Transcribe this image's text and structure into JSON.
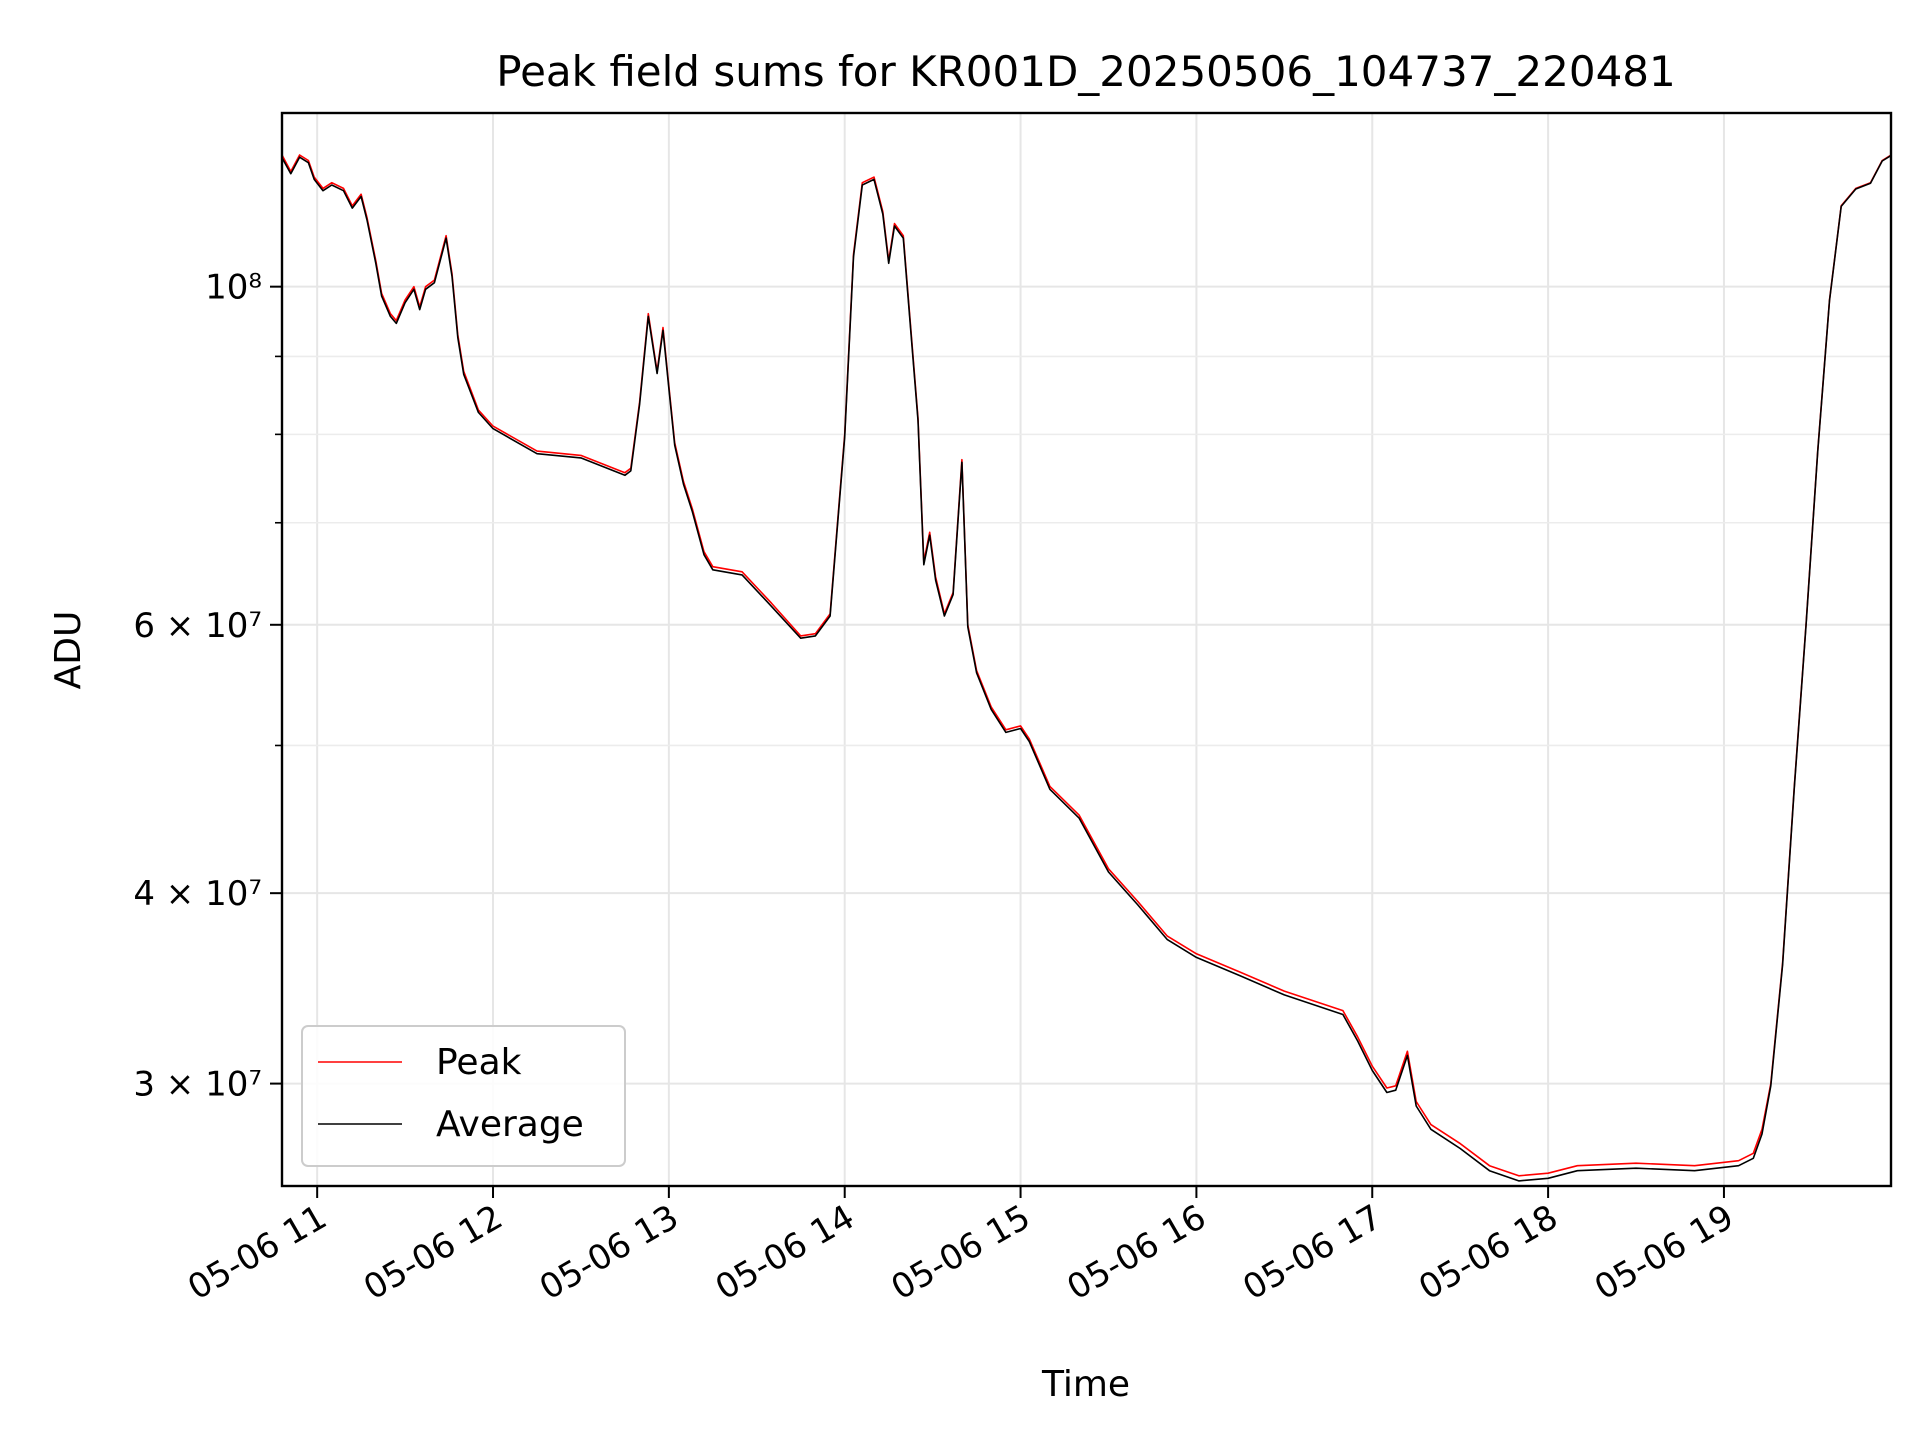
{
  "chart_data": {
    "type": "line",
    "title": "Peak field sums for KR001D_20250506_104737_220481",
    "xlabel": "Time",
    "ylabel": "ADU",
    "yscale": "log",
    "grid": true,
    "legend_position": "lower-left",
    "xlim": [
      "2025-05-06T10:48",
      "2025-05-06T19:57"
    ],
    "ylim": [
      25700000,
      130000000
    ],
    "x_ticks": [
      {
        "t": "2025-05-06T11:00",
        "label": "05-06 11"
      },
      {
        "t": "2025-05-06T12:00",
        "label": "05-06 12"
      },
      {
        "t": "2025-05-06T13:00",
        "label": "05-06 13"
      },
      {
        "t": "2025-05-06T14:00",
        "label": "05-06 14"
      },
      {
        "t": "2025-05-06T15:00",
        "label": "05-06 15"
      },
      {
        "t": "2025-05-06T16:00",
        "label": "05-06 16"
      },
      {
        "t": "2025-05-06T17:00",
        "label": "05-06 17"
      },
      {
        "t": "2025-05-06T18:00",
        "label": "05-06 18"
      },
      {
        "t": "2025-05-06T19:00",
        "label": "05-06 19"
      }
    ],
    "y_major_ticks": [
      {
        "value": 30000000,
        "label": "3 × 10⁷"
      },
      {
        "value": 40000000,
        "label": "4 × 10⁷"
      },
      {
        "value": 60000000,
        "label": "6 × 10⁷"
      },
      {
        "value": 100000000,
        "label": "10⁸"
      }
    ],
    "y_minor_ticks": [
      50000000,
      70000000,
      80000000,
      90000000
    ],
    "x": [
      "2025-05-06T10:48",
      "2025-05-06T10:51",
      "2025-05-06T10:54",
      "2025-05-06T10:57",
      "2025-05-06T10:59",
      "2025-05-06T11:02",
      "2025-05-06T11:05",
      "2025-05-06T11:09",
      "2025-05-06T11:12",
      "2025-05-06T11:15",
      "2025-05-06T11:17",
      "2025-05-06T11:20",
      "2025-05-06T11:22",
      "2025-05-06T11:25",
      "2025-05-06T11:27",
      "2025-05-06T11:30",
      "2025-05-06T11:33",
      "2025-05-06T11:35",
      "2025-05-06T11:37",
      "2025-05-06T11:40",
      "2025-05-06T11:44",
      "2025-05-06T11:46",
      "2025-05-06T11:48",
      "2025-05-06T11:50",
      "2025-05-06T11:55",
      "2025-05-06T12:00",
      "2025-05-06T12:15",
      "2025-05-06T12:30",
      "2025-05-06T12:45",
      "2025-05-06T12:47",
      "2025-05-06T12:50",
      "2025-05-06T12:53",
      "2025-05-06T12:56",
      "2025-05-06T12:58",
      "2025-05-06T13:00",
      "2025-05-06T13:02",
      "2025-05-06T13:05",
      "2025-05-06T13:08",
      "2025-05-06T13:12",
      "2025-05-06T13:15",
      "2025-05-06T13:25",
      "2025-05-06T13:35",
      "2025-05-06T13:45",
      "2025-05-06T13:50",
      "2025-05-06T13:55",
      "2025-05-06T14:00",
      "2025-05-06T14:03",
      "2025-05-06T14:06",
      "2025-05-06T14:10",
      "2025-05-06T14:13",
      "2025-05-06T14:15",
      "2025-05-06T14:17",
      "2025-05-06T14:20",
      "2025-05-06T14:25",
      "2025-05-06T14:27",
      "2025-05-06T14:29",
      "2025-05-06T14:31",
      "2025-05-06T14:34",
      "2025-05-06T14:37",
      "2025-05-06T14:40",
      "2025-05-06T14:42",
      "2025-05-06T14:45",
      "2025-05-06T14:50",
      "2025-05-06T14:55",
      "2025-05-06T15:00",
      "2025-05-06T15:03",
      "2025-05-06T15:10",
      "2025-05-06T15:20",
      "2025-05-06T15:30",
      "2025-05-06T15:40",
      "2025-05-06T15:50",
      "2025-05-06T16:00",
      "2025-05-06T16:15",
      "2025-05-06T16:30",
      "2025-05-06T16:50",
      "2025-05-06T16:55",
      "2025-05-06T17:00",
      "2025-05-06T17:05",
      "2025-05-06T17:08",
      "2025-05-06T17:12",
      "2025-05-06T17:15",
      "2025-05-06T17:20",
      "2025-05-06T17:30",
      "2025-05-06T17:40",
      "2025-05-06T17:50",
      "2025-05-06T18:00",
      "2025-05-06T18:10",
      "2025-05-06T18:30",
      "2025-05-06T18:50",
      "2025-05-06T19:05",
      "2025-05-06T19:10",
      "2025-05-06T19:13",
      "2025-05-06T19:16",
      "2025-05-06T19:20",
      "2025-05-06T19:24",
      "2025-05-06T19:28",
      "2025-05-06T19:32",
      "2025-05-06T19:36",
      "2025-05-06T19:40",
      "2025-05-06T19:45",
      "2025-05-06T19:50",
      "2025-05-06T19:54",
      "2025-05-06T19:57"
    ],
    "series": [
      {
        "name": "Peak",
        "color": "#ff0000",
        "values": [
          122000000,
          119000000,
          122000000,
          121000000,
          118000000,
          116000000,
          117000000,
          116000000,
          113000000,
          115000000,
          111000000,
          104000000,
          99000000,
          96000000,
          95000000,
          98000000,
          100000000,
          97000000,
          100000000,
          101000000,
          108000000,
          102000000,
          93000000,
          88000000,
          83000000,
          81000000,
          78000000,
          77500000,
          75500000,
          76000000,
          84000000,
          96000000,
          88000000,
          94000000,
          86000000,
          79000000,
          74500000,
          71500000,
          67000000,
          65500000,
          65000000,
          62000000,
          59000000,
          59200000,
          61000000,
          80000000,
          105000000,
          117000000,
          118000000,
          112000000,
          104000000,
          110000000,
          108000000,
          82000000,
          66000000,
          69000000,
          64500000,
          61000000,
          63000000,
          77000000,
          60000000,
          56000000,
          53000000,
          51200000,
          51500000,
          50500000,
          47000000,
          45000000,
          41500000,
          39500000,
          37500000,
          36500000,
          35500000,
          34500000,
          33500000,
          32200000,
          30800000,
          29800000,
          29900000,
          31500000,
          29200000,
          28200000,
          27400000,
          26500000,
          26100000,
          26200000,
          26500000,
          26600000,
          26500000,
          26700000,
          27000000,
          28000000,
          30000000,
          36000000,
          47000000,
          60000000,
          78000000,
          98000000,
          113000000,
          116000000,
          117000000,
          121000000,
          122000000
        ]
      },
      {
        "name": "Average",
        "color": "#000000",
        "values": [
          121500000,
          118600000,
          121600000,
          120600000,
          117600000,
          115600000,
          116600000,
          115600000,
          112600000,
          114600000,
          110600000,
          103600000,
          98600000,
          95600000,
          94600000,
          97600000,
          99600000,
          96600000,
          99600000,
          100600000,
          107600000,
          101600000,
          92600000,
          87600000,
          82700000,
          80700000,
          77700000,
          77200000,
          75200000,
          75700000,
          83700000,
          95600000,
          87700000,
          93600000,
          85700000,
          78700000,
          74200000,
          71200000,
          66700000,
          65200000,
          64700000,
          61700000,
          58800000,
          59000000,
          60800000,
          79700000,
          104600000,
          116600000,
          117600000,
          111600000,
          103600000,
          109600000,
          107600000,
          81700000,
          65700000,
          68700000,
          64200000,
          60800000,
          62800000,
          76700000,
          59800000,
          55800000,
          52800000,
          51000000,
          51300000,
          50300000,
          46800000,
          44800000,
          41300000,
          39300000,
          37300000,
          36300000,
          35300000,
          34300000,
          33300000,
          32000000,
          30600000,
          29600000,
          29700000,
          31300000,
          29000000,
          28000000,
          27200000,
          26300000,
          25900000,
          26000000,
          26300000,
          26400000,
          26300000,
          26500000,
          26800000,
          27800000,
          29900000,
          35900000,
          46900000,
          59900000,
          77900000,
          97900000,
          112900000,
          115900000,
          116900000,
          120900000,
          121900000
        ]
      }
    ]
  }
}
